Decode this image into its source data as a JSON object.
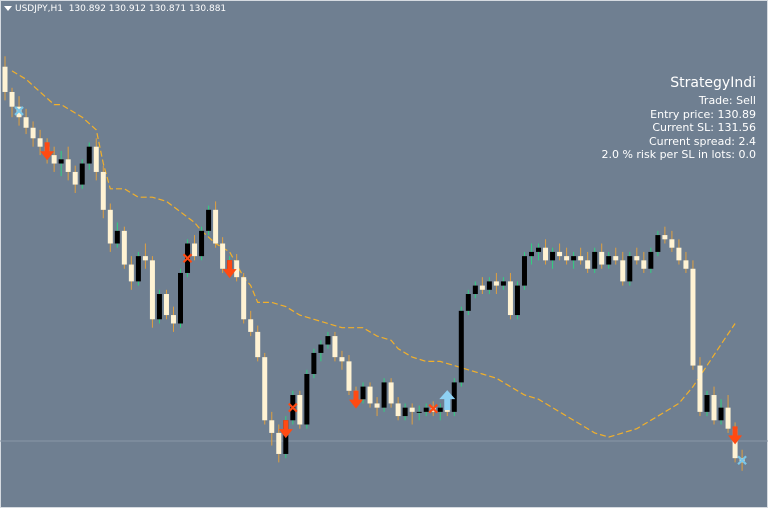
{
  "chart_data": {
    "type": "candlestick",
    "symbol_timeframe": "USDJPY,H1",
    "ohlc_readout": [
      "130.892",
      "130.912",
      "130.871",
      "130.881"
    ],
    "candles": [
      [
        0,
        131.74,
        131.79,
        131.58,
        131.62
      ],
      [
        1,
        131.62,
        131.64,
        131.5,
        131.55
      ],
      [
        2,
        131.55,
        131.6,
        131.46,
        131.5
      ],
      [
        3,
        131.5,
        131.54,
        131.42,
        131.45
      ],
      [
        4,
        131.45,
        131.48,
        131.36,
        131.4
      ],
      [
        5,
        131.4,
        131.44,
        131.32,
        131.36
      ],
      [
        6,
        131.36,
        131.4,
        131.28,
        131.32
      ],
      [
        7,
        131.32,
        131.36,
        131.24,
        131.28
      ],
      [
        8,
        131.28,
        131.34,
        131.22,
        131.3
      ],
      [
        9,
        131.3,
        131.36,
        131.2,
        131.24
      ],
      [
        10,
        131.24,
        131.27,
        131.14,
        131.18
      ],
      [
        11,
        131.18,
        131.3,
        131.16,
        131.28
      ],
      [
        12,
        131.28,
        131.38,
        131.25,
        131.36
      ],
      [
        13,
        131.36,
        131.4,
        131.2,
        131.24
      ],
      [
        14,
        131.24,
        131.27,
        131.02,
        131.06
      ],
      [
        15,
        131.06,
        131.09,
        130.86,
        130.9
      ],
      [
        16,
        130.9,
        131.0,
        130.88,
        130.96
      ],
      [
        17,
        130.96,
        130.98,
        130.78,
        130.8
      ],
      [
        18,
        130.8,
        130.84,
        130.68,
        130.72
      ],
      [
        19,
        130.72,
        130.86,
        130.7,
        130.84
      ],
      [
        20,
        130.84,
        130.9,
        130.78,
        130.82
      ],
      [
        21,
        130.82,
        130.84,
        130.5,
        130.54
      ],
      [
        22,
        130.54,
        130.68,
        130.52,
        130.66
      ],
      [
        23,
        130.66,
        130.68,
        130.54,
        130.56
      ],
      [
        24,
        130.56,
        130.6,
        130.48,
        130.52
      ],
      [
        25,
        130.52,
        130.78,
        130.5,
        130.76
      ],
      [
        26,
        130.76,
        130.92,
        130.74,
        130.9
      ],
      [
        27,
        130.9,
        130.94,
        130.82,
        130.84
      ],
      [
        28,
        130.84,
        130.98,
        130.82,
        130.96
      ],
      [
        29,
        130.96,
        131.08,
        130.94,
        131.06
      ],
      [
        30,
        131.06,
        131.1,
        130.88,
        130.9
      ],
      [
        31,
        130.9,
        130.93,
        130.76,
        130.78
      ],
      [
        32,
        130.78,
        130.84,
        130.74,
        130.82
      ],
      [
        33,
        130.82,
        130.85,
        130.72,
        130.74
      ],
      [
        34,
        130.74,
        130.76,
        130.52,
        130.54
      ],
      [
        35,
        130.54,
        130.58,
        130.46,
        130.48
      ],
      [
        36,
        130.48,
        130.51,
        130.34,
        130.36
      ],
      [
        37,
        130.36,
        130.38,
        130.04,
        130.06
      ],
      [
        38,
        130.06,
        130.1,
        129.94,
        130.0
      ],
      [
        39,
        130.0,
        130.04,
        129.86,
        129.9
      ],
      [
        40,
        129.9,
        130.08,
        129.88,
        130.06
      ],
      [
        41,
        130.06,
        130.2,
        130.04,
        130.18
      ],
      [
        42,
        130.18,
        130.2,
        130.02,
        130.04
      ],
      [
        43,
        130.04,
        130.3,
        130.02,
        130.28
      ],
      [
        44,
        130.28,
        130.4,
        130.26,
        130.38
      ],
      [
        45,
        130.38,
        130.44,
        130.34,
        130.42
      ],
      [
        46,
        130.42,
        130.48,
        130.4,
        130.46
      ],
      [
        47,
        130.46,
        130.48,
        130.34,
        130.36
      ],
      [
        48,
        130.36,
        130.39,
        130.3,
        130.34
      ],
      [
        49,
        130.34,
        130.37,
        130.18,
        130.2
      ],
      [
        50,
        130.2,
        130.22,
        130.12,
        130.16
      ],
      [
        51,
        130.16,
        130.24,
        130.14,
        130.22
      ],
      [
        52,
        130.22,
        130.24,
        130.12,
        130.14
      ],
      [
        53,
        130.14,
        130.17,
        130.08,
        130.12
      ],
      [
        54,
        130.12,
        130.26,
        130.1,
        130.24
      ],
      [
        55,
        130.24,
        130.26,
        130.12,
        130.14
      ],
      [
        56,
        130.14,
        130.17,
        130.06,
        130.08
      ],
      [
        57,
        130.08,
        130.14,
        130.06,
        130.12
      ],
      [
        58,
        130.12,
        130.14,
        130.04,
        130.1
      ],
      [
        59,
        130.1,
        130.13,
        130.06,
        130.1
      ],
      [
        60,
        130.1,
        130.14,
        130.08,
        130.12
      ],
      [
        61,
        130.12,
        130.15,
        130.08,
        130.1
      ],
      [
        62,
        130.1,
        130.14,
        130.06,
        130.12
      ],
      [
        63,
        130.12,
        130.15,
        130.08,
        130.1
      ],
      [
        64,
        130.1,
        130.26,
        130.08,
        130.24
      ],
      [
        65,
        130.24,
        130.6,
        130.22,
        130.58
      ],
      [
        66,
        130.58,
        130.68,
        130.56,
        130.66
      ],
      [
        67,
        130.66,
        130.72,
        130.64,
        130.7
      ],
      [
        68,
        130.7,
        130.74,
        130.66,
        130.68
      ],
      [
        69,
        130.68,
        130.74,
        130.66,
        130.72
      ],
      [
        70,
        130.72,
        130.76,
        130.66,
        130.7
      ],
      [
        71,
        130.7,
        130.74,
        130.68,
        130.72
      ],
      [
        72,
        130.72,
        130.76,
        130.54,
        130.56
      ],
      [
        73,
        130.56,
        130.72,
        130.54,
        130.7
      ],
      [
        74,
        130.7,
        130.86,
        130.68,
        130.84
      ],
      [
        75,
        130.84,
        130.9,
        130.8,
        130.86
      ],
      [
        76,
        130.86,
        130.9,
        130.82,
        130.88
      ],
      [
        77,
        130.88,
        130.92,
        130.8,
        130.82
      ],
      [
        78,
        130.82,
        130.88,
        130.78,
        130.86
      ],
      [
        79,
        130.86,
        130.9,
        130.82,
        130.84
      ],
      [
        80,
        130.84,
        130.88,
        130.8,
        130.82
      ],
      [
        81,
        130.82,
        130.86,
        130.78,
        130.84
      ],
      [
        82,
        130.84,
        130.88,
        130.8,
        130.82
      ],
      [
        83,
        130.82,
        130.86,
        130.76,
        130.78
      ],
      [
        84,
        130.78,
        130.88,
        130.76,
        130.86
      ],
      [
        85,
        130.86,
        130.9,
        130.78,
        130.8
      ],
      [
        86,
        130.8,
        130.86,
        130.78,
        130.84
      ],
      [
        87,
        130.84,
        130.88,
        130.8,
        130.82
      ],
      [
        88,
        130.82,
        130.86,
        130.7,
        130.72
      ],
      [
        89,
        130.72,
        130.86,
        130.7,
        130.84
      ],
      [
        90,
        130.84,
        130.88,
        130.8,
        130.82
      ],
      [
        91,
        130.82,
        130.86,
        130.76,
        130.78
      ],
      [
        92,
        130.78,
        130.88,
        130.76,
        130.86
      ],
      [
        93,
        130.86,
        130.96,
        130.84,
        130.94
      ],
      [
        94,
        130.94,
        130.98,
        130.9,
        130.92
      ],
      [
        95,
        130.92,
        130.96,
        130.86,
        130.88
      ],
      [
        96,
        130.88,
        130.92,
        130.8,
        130.82
      ],
      [
        97,
        130.82,
        130.86,
        130.76,
        130.78
      ],
      [
        98,
        130.78,
        130.82,
        130.3,
        130.32
      ],
      [
        99,
        130.32,
        130.36,
        130.08,
        130.1
      ],
      [
        100,
        130.1,
        130.2,
        130.08,
        130.18
      ],
      [
        101,
        130.18,
        130.22,
        130.04,
        130.06
      ],
      [
        102,
        130.06,
        130.16,
        130.04,
        130.12
      ],
      [
        103,
        130.12,
        130.18,
        130.0,
        130.02
      ],
      [
        104,
        130.02,
        130.05,
        129.86,
        129.88
      ],
      [
        105,
        129.88,
        129.92,
        129.82,
        129.86
      ]
    ],
    "trailing_line": [
      [
        1,
        131.72
      ],
      [
        3,
        131.68
      ],
      [
        5,
        131.62
      ],
      [
        7,
        131.56
      ],
      [
        8,
        131.56
      ],
      [
        10,
        131.52
      ],
      [
        11,
        131.5
      ],
      [
        13,
        131.44
      ],
      [
        14,
        131.28
      ],
      [
        15,
        131.16
      ],
      [
        17,
        131.16
      ],
      [
        19,
        131.12
      ],
      [
        21,
        131.12
      ],
      [
        23,
        131.1
      ],
      [
        25,
        131.05
      ],
      [
        27,
        131.0
      ],
      [
        28,
        130.96
      ],
      [
        30,
        130.9
      ],
      [
        32,
        130.86
      ],
      [
        33,
        130.8
      ],
      [
        34,
        130.74
      ],
      [
        35,
        130.7
      ],
      [
        36,
        130.62
      ],
      [
        38,
        130.62
      ],
      [
        40,
        130.6
      ],
      [
        42,
        130.56
      ],
      [
        44,
        130.54
      ],
      [
        46,
        130.52
      ],
      [
        48,
        130.5
      ],
      [
        51,
        130.5
      ],
      [
        53,
        130.46
      ],
      [
        55,
        130.44
      ],
      [
        56,
        130.4
      ],
      [
        58,
        130.36
      ],
      [
        60,
        130.34
      ],
      [
        62,
        130.34
      ],
      [
        64,
        130.32
      ],
      [
        66,
        130.3
      ],
      [
        68,
        130.28
      ],
      [
        70,
        130.26
      ],
      [
        72,
        130.22
      ],
      [
        74,
        130.18
      ],
      [
        76,
        130.16
      ],
      [
        78,
        130.12
      ],
      [
        80,
        130.08
      ],
      [
        82,
        130.04
      ],
      [
        84,
        130.0
      ],
      [
        86,
        129.98
      ],
      [
        88,
        130.0
      ],
      [
        90,
        130.02
      ],
      [
        92,
        130.06
      ],
      [
        94,
        130.1
      ],
      [
        96,
        130.14
      ],
      [
        98,
        130.22
      ],
      [
        100,
        130.32
      ],
      [
        102,
        130.42
      ],
      [
        104,
        130.52
      ]
    ],
    "signals": [
      {
        "type": "sell",
        "bar": 6
      },
      {
        "type": "sell",
        "bar": 32
      },
      {
        "type": "sell",
        "bar": 40
      },
      {
        "type": "sell",
        "bar": 50
      },
      {
        "type": "buy",
        "bar": 63
      },
      {
        "type": "sell",
        "bar": 104
      }
    ],
    "x_marks": [
      {
        "bar": 2,
        "color": "#7ac6e8"
      },
      {
        "bar": 26,
        "color": "#ff4a12"
      },
      {
        "bar": 41,
        "color": "#ff4a12"
      },
      {
        "bar": 61,
        "color": "#ff4a12"
      },
      {
        "bar": 105,
        "color": "#7ac6e8"
      }
    ],
    "grid": false,
    "legend": "none"
  },
  "header": {
    "symbol": "USDJPY,H1",
    "ohlc": "130.892 130.912 130.871 130.881"
  },
  "panel": {
    "title": "StrategyIndi",
    "lines": [
      "Trade: Sell",
      "Entry price: 130.89",
      "Current SL: 131.56",
      "Current spread: 2.4",
      "2.0 % risk per SL in lots: 0.0"
    ]
  },
  "colors": {
    "background": "#6f7f91",
    "bull_body": "#000000",
    "bear_body": "#fff3d4",
    "bull_wick": "#30d080",
    "bear_wick": "#e0a040",
    "trailing_line": "#f2b02a",
    "sell_arrow": "#ff4a12",
    "buy_arrow": "#8ed0f2",
    "text": "#ffffff"
  }
}
